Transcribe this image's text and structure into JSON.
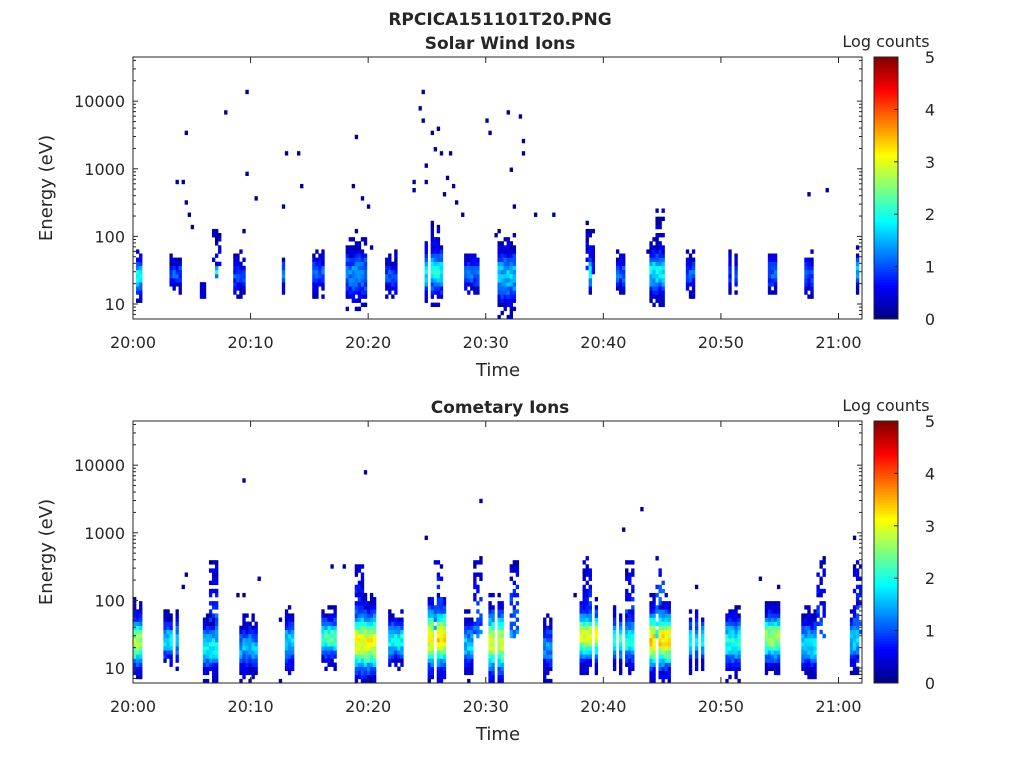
{
  "figure": {
    "title": "RPCICA151101T20.PNG"
  },
  "chart_data": [
    {
      "type": "heatmap",
      "title": "Solar Wind Ions",
      "xlabel": "Time",
      "ylabel": "Energy (eV)",
      "x_range_minutes": [
        0,
        62
      ],
      "x_ticks": [
        "20:00",
        "20:10",
        "20:20",
        "20:30",
        "20:40",
        "20:50",
        "21:00"
      ],
      "y_scale": "log",
      "y_range": [
        6,
        45000
      ],
      "y_ticks": [
        "10",
        "100",
        "1000",
        "10000"
      ],
      "colorbar": {
        "label": "Log counts",
        "range": [
          0,
          5
        ],
        "ticks": [
          "0",
          "1",
          "2",
          "3",
          "4",
          "5"
        ],
        "colormap": "jet"
      },
      "bursts": [
        {
          "t": 0.5,
          "len": 0.6,
          "e": 26,
          "amp": 1.9,
          "spread": 0.16
        },
        {
          "t": 3.6,
          "len": 0.9,
          "e": 28,
          "amp": 1.0,
          "spread": 0.12
        },
        {
          "t": 5.9,
          "len": 0.5,
          "e": 15,
          "amp": 0.6,
          "spread": 0.06
        },
        {
          "t": 7.0,
          "len": 0.3,
          "e": 30,
          "amp": 2.0,
          "spread": 0.06
        },
        {
          "t": 9.2,
          "len": 1.2,
          "e": 26,
          "amp": 0.9,
          "spread": 0.14
        },
        {
          "t": 12.9,
          "len": 0.6,
          "e": 28,
          "amp": 1.2,
          "spread": 0.14
        },
        {
          "t": 15.7,
          "len": 1.1,
          "e": 28,
          "amp": 1.1,
          "spread": 0.15
        },
        {
          "t": 19.0,
          "len": 1.6,
          "e": 28,
          "amp": 1.3,
          "spread": 0.22
        },
        {
          "t": 22.0,
          "len": 0.9,
          "e": 26,
          "amp": 1.0,
          "spread": 0.15
        },
        {
          "t": 25.6,
          "len": 1.6,
          "e": 30,
          "amp": 1.9,
          "spread": 0.2
        },
        {
          "t": 28.8,
          "len": 1.5,
          "e": 28,
          "amp": 1.1,
          "spread": 0.15
        },
        {
          "t": 31.8,
          "len": 1.4,
          "e": 26,
          "amp": 1.6,
          "spread": 0.24
        },
        {
          "t": 38.8,
          "len": 0.6,
          "e": 30,
          "amp": 1.9,
          "spread": 0.18
        },
        {
          "t": 41.6,
          "len": 1.2,
          "e": 28,
          "amp": 1.1,
          "spread": 0.15
        },
        {
          "t": 44.6,
          "len": 1.3,
          "e": 30,
          "amp": 1.8,
          "spread": 0.2
        },
        {
          "t": 47.5,
          "len": 1.0,
          "e": 28,
          "amp": 1.0,
          "spread": 0.15
        },
        {
          "t": 51.1,
          "len": 0.8,
          "e": 28,
          "amp": 0.9,
          "spread": 0.15
        },
        {
          "t": 54.4,
          "len": 0.9,
          "e": 28,
          "amp": 1.1,
          "spread": 0.15
        },
        {
          "t": 57.4,
          "len": 1.0,
          "e": 28,
          "amp": 1.0,
          "spread": 0.15
        },
        {
          "t": 61.5,
          "len": 0.4,
          "e": 30,
          "amp": 1.6,
          "spread": 0.14
        }
      ],
      "plumes": [
        {
          "t": 7.0,
          "e_low": 30,
          "e_high": 120,
          "amp": 0.7
        },
        {
          "t": 38.8,
          "e_low": 30,
          "e_high": 140,
          "amp": 0.9
        },
        {
          "t": 44.8,
          "e_low": 30,
          "e_high": 260,
          "amp": 0.8
        },
        {
          "t": 25.6,
          "e_low": 30,
          "e_high": 150,
          "amp": 0.8
        }
      ],
      "scatter": [
        [
          3.8,
          600
        ],
        [
          4.2,
          650
        ],
        [
          4.5,
          330
        ],
        [
          4.6,
          3600
        ],
        [
          4.9,
          210
        ],
        [
          5.1,
          140
        ],
        [
          7.9,
          7300
        ],
        [
          9.3,
          120
        ],
        [
          9.7,
          14000
        ],
        [
          9.8,
          900
        ],
        [
          10.5,
          380
        ],
        [
          12.9,
          290
        ],
        [
          13.1,
          1600
        ],
        [
          14.0,
          1600
        ],
        [
          14.3,
          540
        ],
        [
          18.7,
          540
        ],
        [
          19.0,
          2800
        ],
        [
          19.1,
          120
        ],
        [
          19.6,
          360
        ],
        [
          20.0,
          290
        ],
        [
          20.3,
          72
        ],
        [
          23.9,
          500
        ],
        [
          24.0,
          600
        ],
        [
          24.5,
          7500
        ],
        [
          24.6,
          13500
        ],
        [
          24.7,
          5500
        ],
        [
          24.8,
          1100
        ],
        [
          25.0,
          650
        ],
        [
          25.5,
          3500
        ],
        [
          25.8,
          2000
        ],
        [
          26.0,
          4000
        ],
        [
          26.2,
          1800
        ],
        [
          26.4,
          420
        ],
        [
          26.7,
          730
        ],
        [
          27.1,
          1800
        ],
        [
          27.3,
          580
        ],
        [
          27.5,
          330
        ],
        [
          28.0,
          220
        ],
        [
          30.0,
          5000
        ],
        [
          30.4,
          3400
        ],
        [
          30.9,
          100
        ],
        [
          31.1,
          120
        ],
        [
          31.8,
          7300
        ],
        [
          32.2,
          1000
        ],
        [
          32.5,
          260
        ],
        [
          32.9,
          5700
        ],
        [
          33.1,
          2700
        ],
        [
          33.3,
          1800
        ],
        [
          34.1,
          210
        ],
        [
          35.9,
          210
        ],
        [
          38.5,
          150
        ],
        [
          57.5,
          430
        ],
        [
          59.1,
          460
        ],
        [
          43.8,
          60
        ]
      ]
    },
    {
      "type": "heatmap",
      "title": "Cometary Ions",
      "xlabel": "Time",
      "ylabel": "Energy (eV)",
      "x_range_minutes": [
        0,
        62
      ],
      "x_ticks": [
        "20:00",
        "20:10",
        "20:20",
        "20:30",
        "20:40",
        "20:50",
        "21:00"
      ],
      "y_scale": "log",
      "y_range": [
        6,
        45000
      ],
      "y_ticks": [
        "10",
        "100",
        "1000",
        "10000"
      ],
      "colorbar": {
        "label": "Log counts",
        "range": [
          0,
          5
        ],
        "ticks": [
          "0",
          "1",
          "2",
          "3",
          "4",
          "5"
        ],
        "colormap": "jet"
      },
      "bursts": [
        {
          "t": 0.5,
          "len": 0.8,
          "e": 24,
          "amp": 2.7,
          "spread": 0.24
        },
        {
          "t": 3.3,
          "len": 1.3,
          "e": 26,
          "amp": 1.7,
          "spread": 0.18
        },
        {
          "t": 6.6,
          "len": 1.2,
          "e": 20,
          "amp": 1.9,
          "spread": 0.2
        },
        {
          "t": 9.8,
          "len": 1.4,
          "e": 20,
          "amp": 1.5,
          "spread": 0.2
        },
        {
          "t": 13.3,
          "len": 1.0,
          "e": 24,
          "amp": 1.7,
          "spread": 0.2
        },
        {
          "t": 16.7,
          "len": 1.5,
          "e": 28,
          "amp": 2.3,
          "spread": 0.18
        },
        {
          "t": 19.7,
          "len": 1.8,
          "e": 24,
          "amp": 3.1,
          "spread": 0.28
        },
        {
          "t": 22.5,
          "len": 1.6,
          "e": 26,
          "amp": 2.0,
          "spread": 0.18
        },
        {
          "t": 25.9,
          "len": 1.7,
          "e": 28,
          "amp": 3.2,
          "spread": 0.28
        },
        {
          "t": 28.6,
          "len": 1.0,
          "e": 22,
          "amp": 1.6,
          "spread": 0.2
        },
        {
          "t": 31.2,
          "len": 1.8,
          "e": 24,
          "amp": 2.9,
          "spread": 0.28
        },
        {
          "t": 35.1,
          "len": 1.3,
          "e": 20,
          "amp": 1.4,
          "spread": 0.2
        },
        {
          "t": 38.7,
          "len": 1.4,
          "e": 30,
          "amp": 3.0,
          "spread": 0.22
        },
        {
          "t": 41.6,
          "len": 1.8,
          "e": 26,
          "amp": 2.1,
          "spread": 0.2
        },
        {
          "t": 44.8,
          "len": 1.8,
          "e": 26,
          "amp": 3.3,
          "spread": 0.26
        },
        {
          "t": 47.9,
          "len": 1.2,
          "e": 26,
          "amp": 1.8,
          "spread": 0.2
        },
        {
          "t": 51.1,
          "len": 1.3,
          "e": 24,
          "amp": 2.0,
          "spread": 0.22
        },
        {
          "t": 54.6,
          "len": 1.5,
          "e": 28,
          "amp": 2.7,
          "spread": 0.22
        },
        {
          "t": 57.4,
          "len": 1.2,
          "e": 22,
          "amp": 1.8,
          "spread": 0.22
        },
        {
          "t": 61.4,
          "len": 0.8,
          "e": 26,
          "amp": 1.7,
          "spread": 0.2
        }
      ],
      "plumes": [
        {
          "t": 6.9,
          "e_low": 30,
          "e_high": 350,
          "amp": 1.3
        },
        {
          "t": 19.3,
          "e_low": 30,
          "e_high": 330,
          "amp": 1.4
        },
        {
          "t": 25.9,
          "e_low": 30,
          "e_high": 350,
          "amp": 1.6
        },
        {
          "t": 29.2,
          "e_low": 30,
          "e_high": 350,
          "amp": 1.2
        },
        {
          "t": 32.3,
          "e_low": 30,
          "e_high": 350,
          "amp": 1.3
        },
        {
          "t": 38.7,
          "e_low": 30,
          "e_high": 400,
          "amp": 1.2
        },
        {
          "t": 42.3,
          "e_low": 30,
          "e_high": 350,
          "amp": 1.1
        },
        {
          "t": 44.9,
          "e_low": 30,
          "e_high": 450,
          "amp": 1.9
        },
        {
          "t": 58.5,
          "e_low": 30,
          "e_high": 380,
          "amp": 1.0
        },
        {
          "t": 61.6,
          "e_low": 30,
          "e_high": 400,
          "amp": 1.1
        }
      ],
      "scatter": [
        [
          9.4,
          6200
        ],
        [
          19.8,
          7700
        ],
        [
          29.6,
          3000
        ],
        [
          24.8,
          900
        ],
        [
          41.6,
          1100
        ],
        [
          43.3,
          2400
        ],
        [
          61.3,
          900
        ],
        [
          0.1,
          100
        ],
        [
          4.3,
          170
        ],
        [
          4.4,
          230
        ],
        [
          8.9,
          120
        ],
        [
          9.5,
          120
        ],
        [
          10.8,
          200
        ],
        [
          12.6,
          55
        ],
        [
          16.9,
          330
        ],
        [
          18.0,
          330
        ],
        [
          29.5,
          450
        ],
        [
          37.7,
          120
        ],
        [
          48.0,
          170
        ],
        [
          53.4,
          200
        ],
        [
          55.0,
          170
        ],
        [
          58.8,
          420
        ],
        [
          12.5,
          6.5
        ],
        [
          9.9,
          6.5
        ],
        [
          35.0,
          6.5
        ],
        [
          28.5,
          6.5
        ]
      ]
    }
  ]
}
